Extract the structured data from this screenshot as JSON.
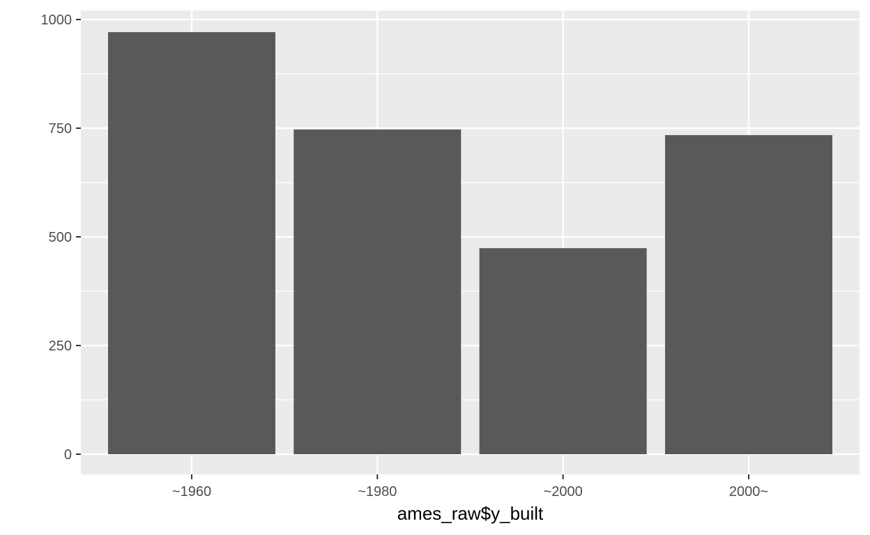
{
  "chart_data": {
    "type": "bar",
    "categories": [
      "~1960",
      "~1980",
      "~2000",
      "2000~"
    ],
    "values": [
      971,
      747,
      474,
      734
    ],
    "title": "",
    "xlabel": "ames_raw$y_built",
    "ylabel": "",
    "ylim": [
      0,
      1000
    ],
    "yticks": [
      0,
      250,
      500,
      750,
      1000
    ],
    "grid": true,
    "legend": "none"
  },
  "style": {
    "panel_background": "#ebebeb",
    "grid_color": "#ffffff",
    "bar_color": "#595959",
    "tick_color": "#333333",
    "tick_label_color": "#4d4d4d"
  }
}
